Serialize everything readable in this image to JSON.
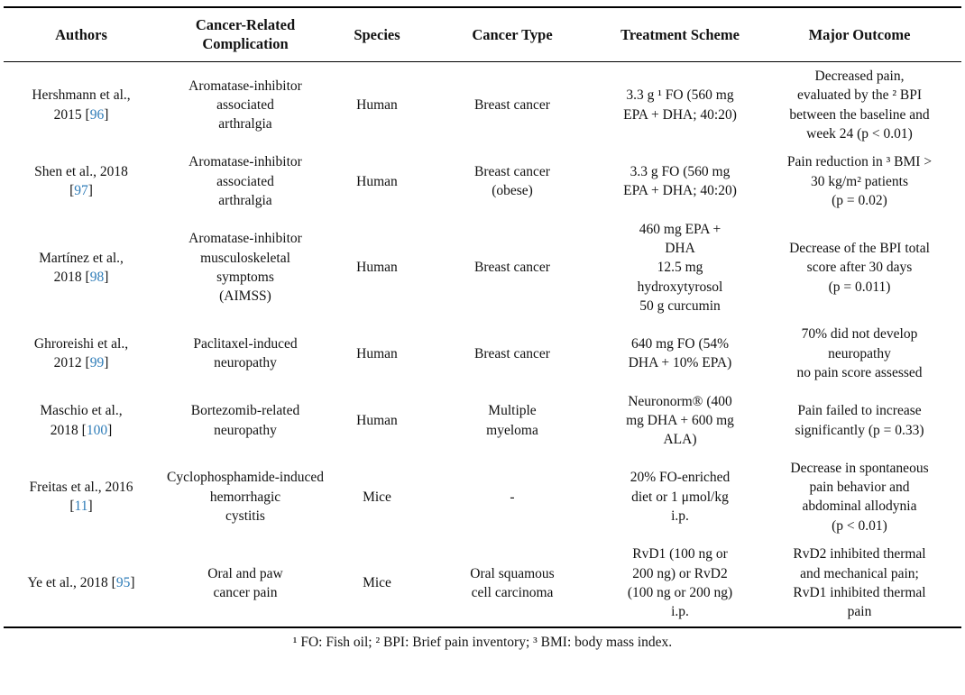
{
  "table": {
    "headers": {
      "authors": "Authors",
      "complication": "Cancer-Related\nComplication",
      "species": "Species",
      "cancer_type": "Cancer Type",
      "treatment": "Treatment Scheme",
      "outcome": "Major Outcome"
    },
    "rows": [
      {
        "author_pre": "Hershmann et al.,\n2015 [",
        "ref": "96",
        "author_post": "]",
        "complication": "Aromatase-inhibitor\nassociated\narthralgia",
        "species": "Human",
        "cancer_type": "Breast cancer",
        "treatment": "3.3 g ¹ FO (560 mg\nEPA + DHA; 40:20)",
        "outcome": "Decreased pain,\nevaluated by the ² BPI\nbetween the baseline and\nweek 24 (p < 0.01)"
      },
      {
        "author_pre": "Shen et al., 2018\n[",
        "ref": "97",
        "author_post": "]",
        "complication": "Aromatase-inhibitor\nassociated\narthralgia",
        "species": "Human",
        "cancer_type": "Breast cancer\n(obese)",
        "treatment": "3.3 g FO (560 mg\nEPA + DHA; 40:20)",
        "outcome": "Pain reduction in ³ BMI >\n30 kg/m² patients\n(p = 0.02)"
      },
      {
        "author_pre": "Martínez et al.,\n2018 [",
        "ref": "98",
        "author_post": "]",
        "complication": "Aromatase-inhibitor\nmusculoskeletal\nsymptoms\n(AIMSS)",
        "species": "Human",
        "cancer_type": "Breast cancer",
        "treatment": "460 mg EPA +\nDHA\n12.5 mg\nhydroxytyrosol\n50 g curcumin",
        "outcome": "Decrease of the BPI total\nscore after 30 days\n(p = 0.011)"
      },
      {
        "author_pre": "Ghroreishi et al.,\n2012 [",
        "ref": "99",
        "author_post": "]",
        "complication": "Paclitaxel-induced\nneuropathy",
        "species": "Human",
        "cancer_type": "Breast cancer",
        "treatment": "640 mg FO (54%\nDHA + 10% EPA)",
        "outcome": "70% did not develop\nneuropathy\nno pain score assessed"
      },
      {
        "author_pre": "Maschio et al.,\n2018 [",
        "ref": "100",
        "author_post": "]",
        "complication": "Bortezomib-related\nneuropathy",
        "species": "Human",
        "cancer_type": "Multiple\nmyeloma",
        "treatment": "Neuronorm® (400\nmg DHA + 600 mg\nALA)",
        "outcome": "Pain failed to increase\nsignificantly (p = 0.33)"
      },
      {
        "author_pre": "Freitas et al., 2016\n[",
        "ref": "11",
        "author_post": "]",
        "complication": "Cyclophosphamide-induced\nhemorrhagic\ncystitis",
        "species": "Mice",
        "cancer_type": "-",
        "treatment": "20% FO-enriched\ndiet or 1 μmol/kg\ni.p.",
        "outcome": "Decrease in spontaneous\npain behavior and\nabdominal allodynia\n(p < 0.01)"
      },
      {
        "author_pre": "Ye et al., 2018 [",
        "ref": "95",
        "author_post": "]",
        "complication": "Oral and paw\ncancer pain",
        "species": "Mice",
        "cancer_type": "Oral squamous\ncell carcinoma",
        "treatment": "RvD1 (100 ng or\n200 ng) or RvD2\n(100 ng or 200 ng)\ni.p.",
        "outcome": "RvD2 inhibited thermal\nand mechanical pain;\nRvD1 inhibited thermal\npain"
      }
    ]
  },
  "footnote": "¹ FO: Fish oil; ² BPI: Brief pain inventory; ³ BMI: body mass index.",
  "colors": {
    "reference_link": "#2e7cb8",
    "text": "#121212",
    "rule": "#000000",
    "background": "#ffffff"
  }
}
